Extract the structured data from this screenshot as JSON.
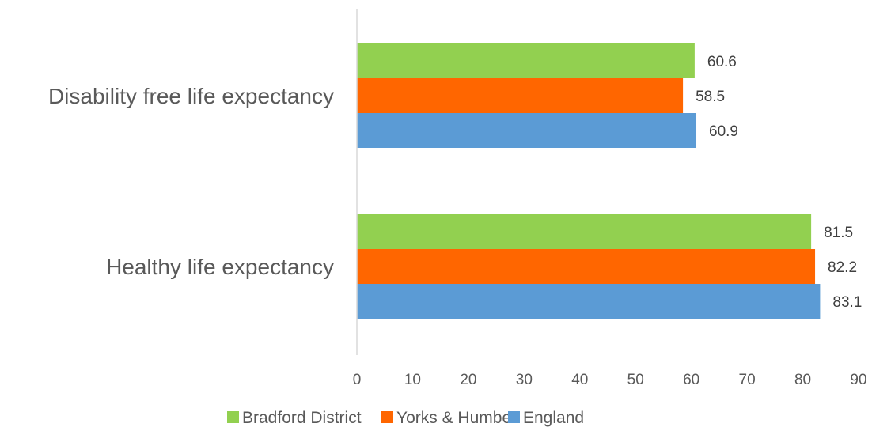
{
  "chart_data": {
    "type": "bar",
    "orientation": "horizontal",
    "categories": [
      "Disability free life expectancy",
      "Healthy life expectancy"
    ],
    "series": [
      {
        "name": "Bradford District",
        "values": [
          60.6,
          81.5
        ],
        "color": "#92d050"
      },
      {
        "name": "Yorks & Humber",
        "values": [
          58.5,
          82.2
        ],
        "color": "#ff6600"
      },
      {
        "name": "England",
        "values": [
          60.9,
          83.1
        ],
        "color": "#5b9bd5"
      }
    ],
    "xlim": [
      0,
      90
    ],
    "x_ticks": [
      "0",
      "10",
      "20",
      "30",
      "40",
      "50",
      "60",
      "70",
      "80",
      "90"
    ],
    "grid": false,
    "legend_position": "bottom"
  }
}
